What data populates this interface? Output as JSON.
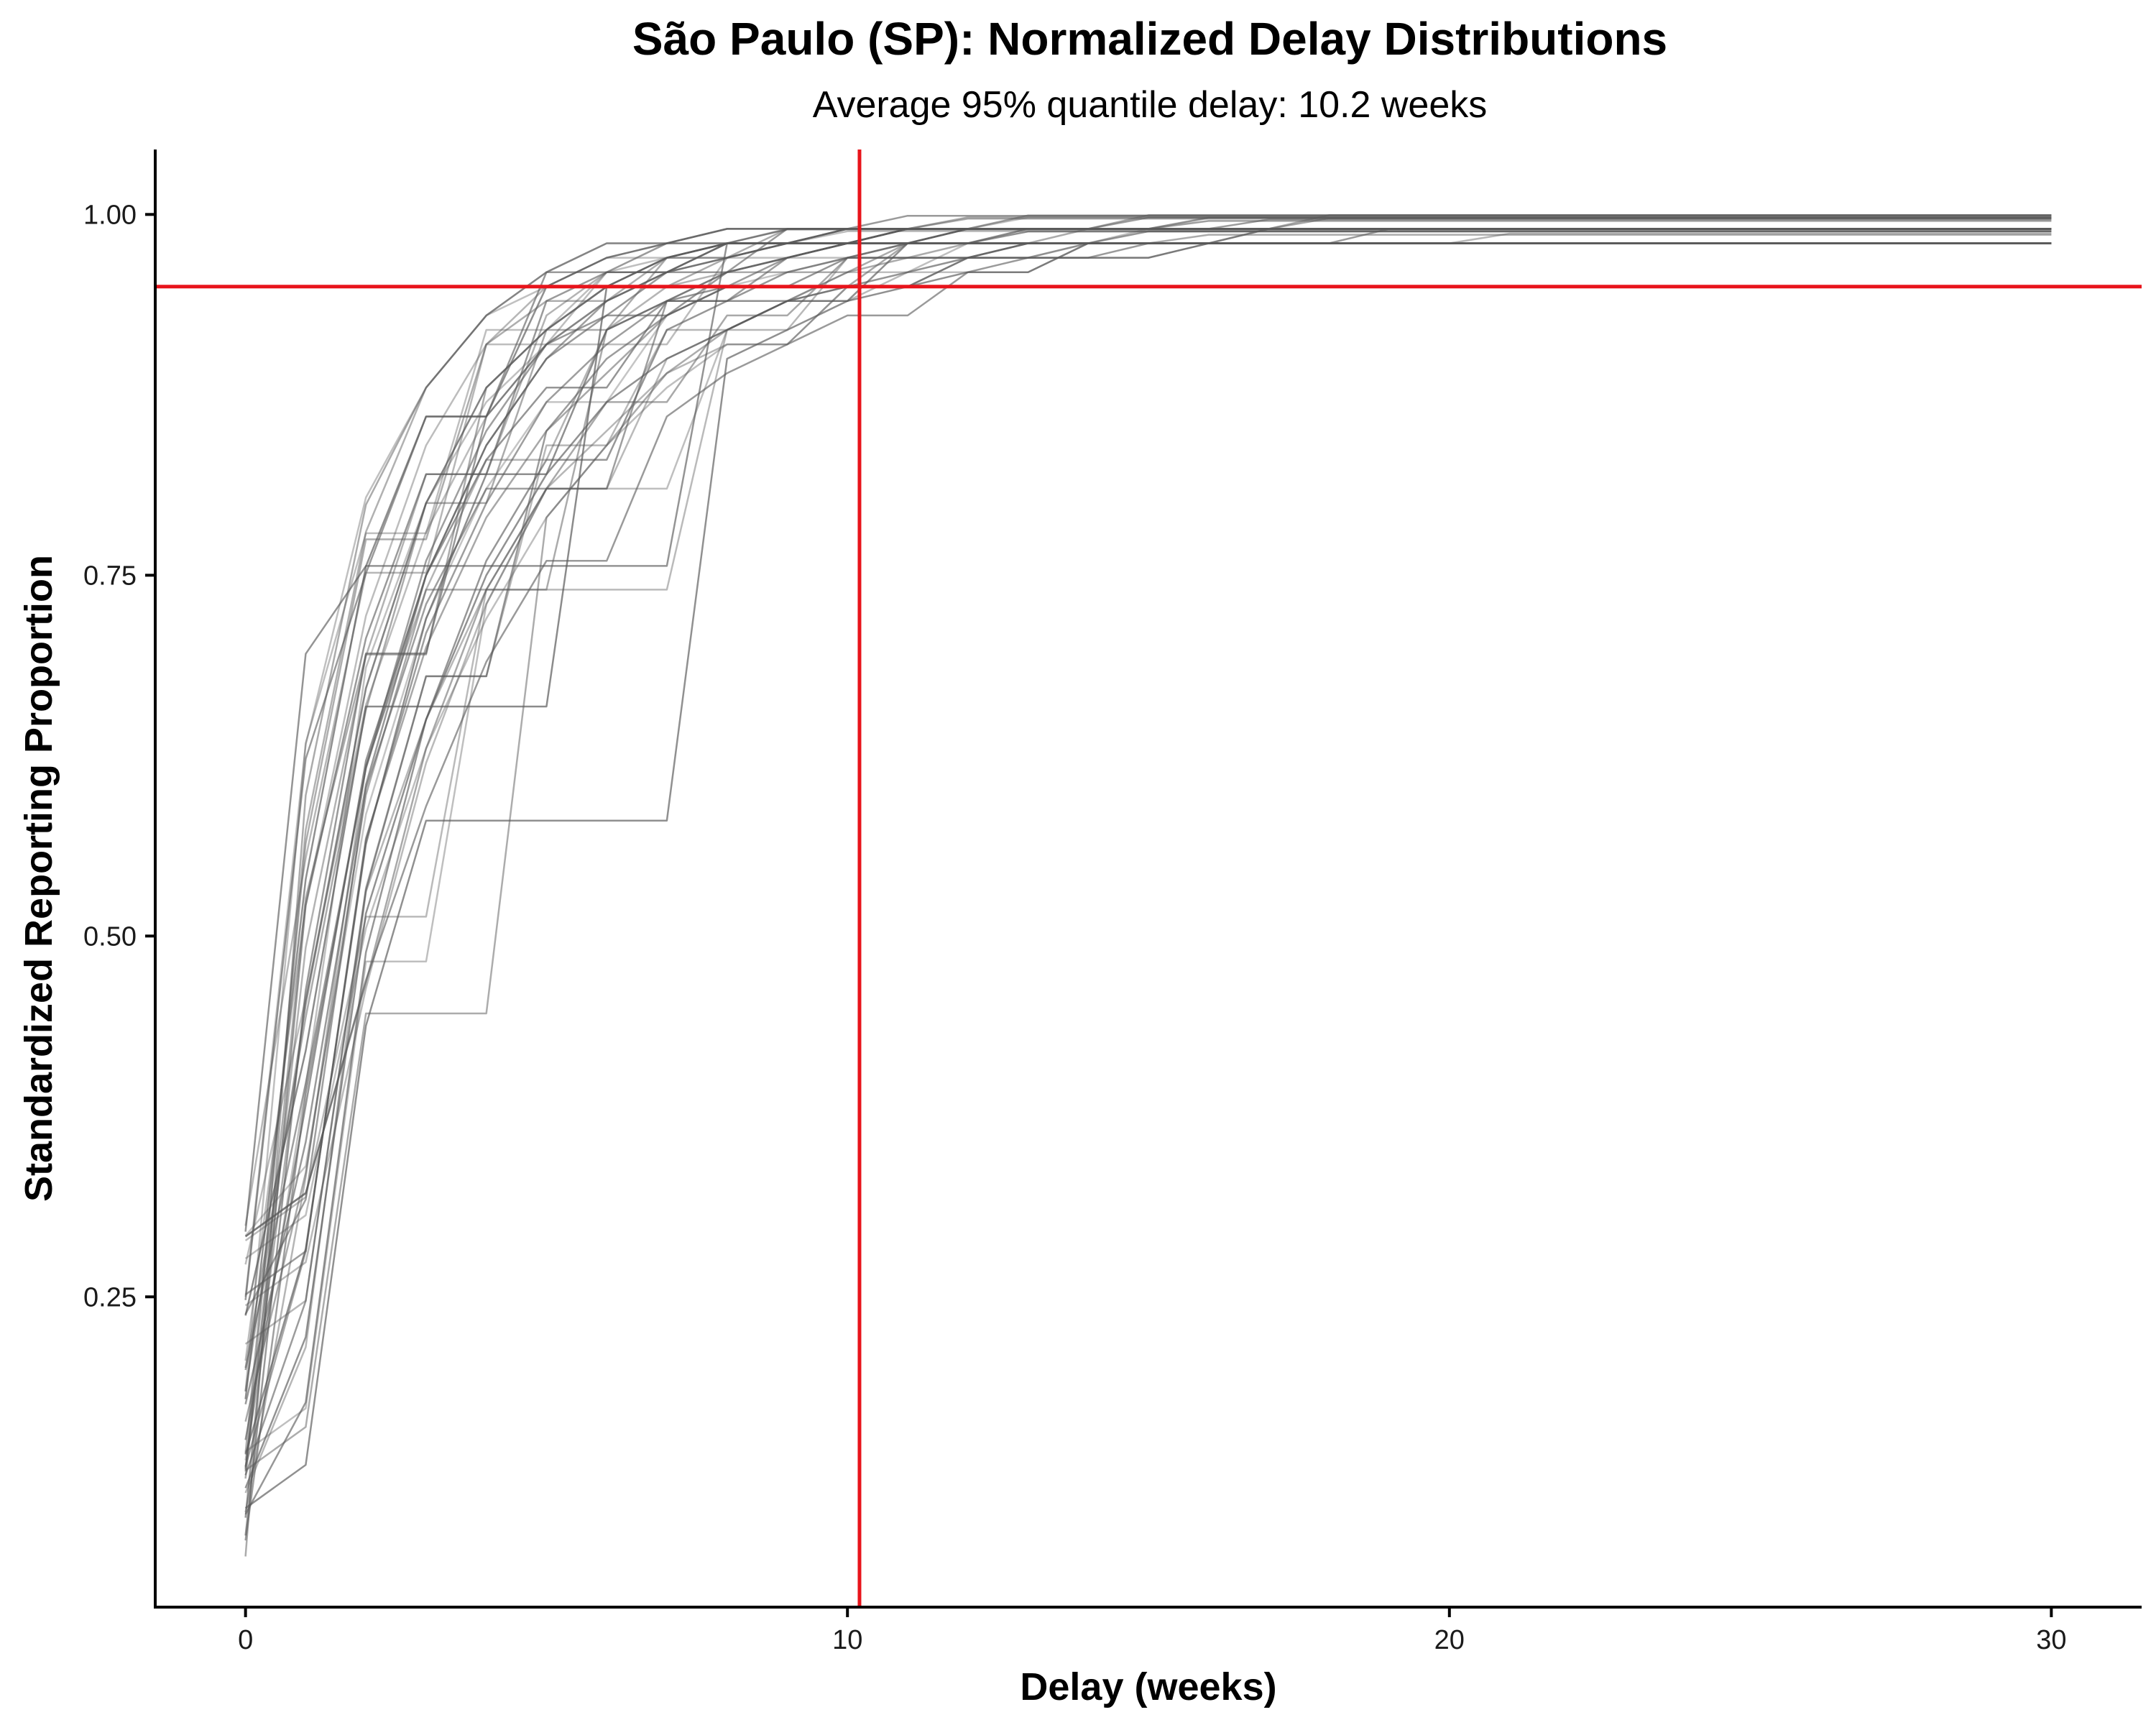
{
  "chart_data": {
    "type": "line",
    "title": "São Paulo (SP): Normalized Delay Distributions",
    "subtitle": "Average 95% quantile delay: 10.2 weeks",
    "xlabel": "Delay (weeks)",
    "ylabel": "Standardized Reporting Proportion",
    "xlim": [
      -1.5,
      31.5
    ],
    "ylim": [
      0.035,
      1.045
    ],
    "x_ticks": [
      0,
      10,
      20,
      30
    ],
    "y_ticks": [
      0.25,
      0.5,
      0.75,
      1.0
    ],
    "x_tick_labels": [
      "0",
      "10",
      "20",
      "30"
    ],
    "y_tick_labels": [
      "0.25",
      "0.50",
      "0.75",
      "1.00"
    ],
    "grid": false,
    "line_color": "#5a5a5a",
    "reference_color": "#e8141b",
    "reference_lines": {
      "vertical_x": 10.2,
      "horizontal_y": 0.95
    },
    "series_generation": {
      "count": 44,
      "weeks": [
        0,
        30
      ],
      "start_range": [
        0.07,
        0.3
      ],
      "week1_range": [
        0.11,
        0.73
      ],
      "week2_range": [
        0.38,
        0.85
      ],
      "end_range": [
        0.98,
        1.0
      ],
      "note": "cumulative reporting curves; each series rises steeply in first 2-4 weeks and plateaus near 1.0"
    }
  }
}
